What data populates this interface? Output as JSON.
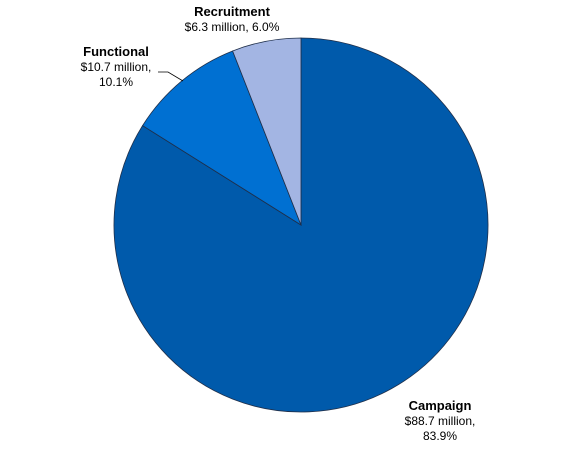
{
  "chart_data": {
    "type": "pie",
    "title": "",
    "slices": [
      {
        "name": "Campaign",
        "value": 88.7,
        "value_label": "$88.7 million,",
        "percent_label": "83.9%",
        "color": "#005aab"
      },
      {
        "name": "Functional",
        "value": 10.7,
        "value_label": "$10.7 million,",
        "percent_label": "10.1%",
        "color": "#0070d2"
      },
      {
        "name": "Recruitment",
        "value": 6.3,
        "value_label": "$6.3 million, 6.0%",
        "percent_label": "",
        "color": "#a3b5e3"
      }
    ],
    "start_angle": "12 o'clock",
    "direction": "clockwise",
    "legend": "none"
  }
}
